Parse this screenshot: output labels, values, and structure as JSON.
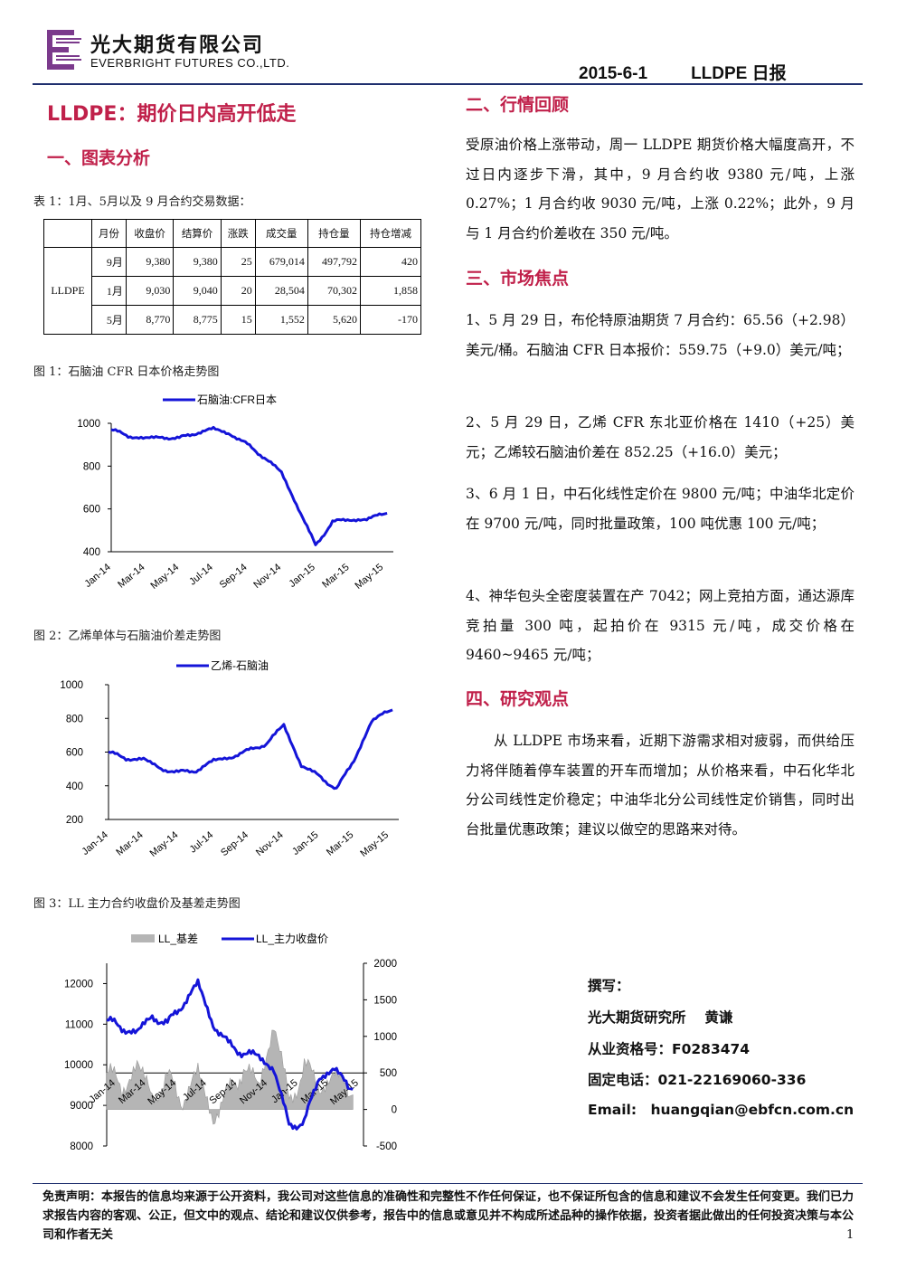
{
  "header": {
    "company_cn": "光大期货有限公司",
    "company_en": "EVERBRIGHT FUTURES CO.,LTD.",
    "date": "2015-6-1",
    "report": "LLDPE 日报"
  },
  "colors": {
    "accent": "#c0204a",
    "brand_navy": "#1f2f6e",
    "logo_purple": "#7b3a8c",
    "series_blue": "#1414d8",
    "basis_gray": "#b5b5b5"
  },
  "title": "LLDPE：期价日内高开低走",
  "sections": {
    "s1": "一、图表分析",
    "s2": "二、行情回顾",
    "s3": "三、市场焦点",
    "s4": "四、研究观点"
  },
  "table1": {
    "caption": "表 1：1月、5月以及 9 月合约交易数据：",
    "headers": [
      "",
      "月份",
      "收盘价",
      "结算价",
      "涨跌",
      "成交量",
      "持仓量",
      "持仓增减"
    ],
    "product": "LLDPE",
    "rows": [
      [
        "9月",
        "9,380",
        "9,380",
        "25",
        "679,014",
        "497,792",
        "420"
      ],
      [
        "1月",
        "9,030",
        "9,040",
        "20",
        "28,504",
        "70,302",
        "1,858"
      ],
      [
        "5月",
        "8,770",
        "8,775",
        "15",
        "1,552",
        "5,620",
        "-170"
      ]
    ]
  },
  "figures": {
    "fig1_caption": "图 1：石脑油 CFR 日本价格走势图",
    "fig2_caption": "图 2：乙烯单体与石脑油价差走势图",
    "fig3_caption": "图 3：LL 主力合约收盘价及基差走势图"
  },
  "chart_data": [
    {
      "type": "line",
      "series": [
        {
          "name": "石脑油:CFR日本",
          "x": [
            "2014-01",
            "2014-02",
            "2014-03",
            "2014-04",
            "2014-05",
            "2014-06",
            "2014-07",
            "2014-08",
            "2014-09",
            "2014-10",
            "2014-11",
            "2014-12",
            "2015-01",
            "2015-02",
            "2015-03",
            "2015-04",
            "2015-05"
          ],
          "values": [
            970,
            940,
            930,
            935,
            930,
            955,
            975,
            950,
            900,
            840,
            770,
            600,
            430,
            540,
            550,
            550,
            580
          ]
        }
      ],
      "x_ticks": [
        "Jan-14",
        "Mar-14",
        "May-14",
        "Jul-14",
        "Sep-14",
        "Nov-14",
        "Jan-15",
        "Mar-15",
        "May-15"
      ],
      "yticks": [
        400,
        600,
        800,
        1000
      ],
      "ylim": [
        400,
        1000
      ],
      "legend": "top"
    },
    {
      "type": "line",
      "series": [
        {
          "name": "乙烯-石脑油",
          "x": [
            "2014-01",
            "2014-02",
            "2014-03",
            "2014-04",
            "2014-05",
            "2014-06",
            "2014-07",
            "2014-08",
            "2014-09",
            "2014-10",
            "2014-11",
            "2014-12",
            "2015-01",
            "2015-02",
            "2015-03",
            "2015-04",
            "2015-05"
          ],
          "values": [
            600,
            560,
            560,
            500,
            480,
            490,
            550,
            570,
            610,
            650,
            760,
            520,
            460,
            380,
            550,
            780,
            850
          ]
        }
      ],
      "x_ticks": [
        "Jan-14",
        "Mar-14",
        "May-14",
        "Jul-14",
        "Sep-14",
        "Nov-14",
        "Jan-15",
        "Mar-15",
        "May-15"
      ],
      "yticks": [
        200,
        400,
        600,
        800,
        1000
      ],
      "ylim": [
        200,
        1000
      ],
      "legend": "top"
    },
    {
      "type": "line",
      "series": [
        {
          "name": "LL_基差",
          "axis": "right",
          "x": [
            "2014-01",
            "2014-02",
            "2014-03",
            "2014-04",
            "2014-05",
            "2014-06",
            "2014-07",
            "2014-08",
            "2014-09",
            "2014-10",
            "2014-11",
            "2014-12",
            "2015-01",
            "2015-02",
            "2015-03",
            "2015-04",
            "2015-05"
          ],
          "values": [
            500,
            300,
            600,
            200,
            400,
            150,
            500,
            -100,
            200,
            600,
            300,
            1200,
            100,
            600,
            300,
            500,
            200
          ]
        },
        {
          "name": "LL_主力收盘价",
          "axis": "left",
          "x": [
            "2014-01",
            "2014-02",
            "2014-03",
            "2014-04",
            "2014-05",
            "2014-06",
            "2014-07",
            "2014-08",
            "2014-09",
            "2014-10",
            "2014-11",
            "2014-12",
            "2015-01",
            "2015-02",
            "2015-03",
            "2015-04",
            "2015-05"
          ],
          "values": [
            11100,
            10900,
            10800,
            11200,
            11000,
            11500,
            12000,
            11000,
            10500,
            10300,
            10200,
            9900,
            8500,
            8600,
            9700,
            9900,
            9400
          ]
        }
      ],
      "x_ticks": [
        "Jan-14",
        "Mar-14",
        "May-14",
        "Jul-14",
        "Sep-14",
        "Nov-14",
        "Jan-15",
        "Mar-15",
        "May-15"
      ],
      "yticks_left": [
        8000,
        9000,
        10000,
        11000,
        12000
      ],
      "ylim_left": [
        8000,
        12500
      ],
      "yticks_right": [
        -500,
        0,
        500,
        1000,
        1500,
        2000
      ],
      "ylim_right": [
        -500,
        2000
      ],
      "legend": "top"
    }
  ],
  "review": {
    "p1": "受原油价格上涨带动，周一 LLDPE 期货价格大幅度高开，不过日内逐步下滑，其中，9 月合约收 9380 元/吨，上涨 0.27%；1 月合约收 9030 元/吨，上涨 0.22%；此外，9 月与 1 月合约价差收在 350 元/吨。"
  },
  "focus": [
    "1、5 月 29 日，布伦特原油期货 7 月合约：65.56（+2.98）美元/桶。石脑油 CFR 日本报价：559.75（+9.0）美元/吨；",
    "2、5 月 29 日，乙烯 CFR 东北亚价格在 1410（+25）美元；乙烯较石脑油价差在 852.25（+16.0）美元；",
    "3、6 月 1 日，中石化线性定价在 9800 元/吨；中油华北定价在 9700 元/吨，同时批量政策，100 吨优惠 100 元/吨；",
    "4、神华包头全密度装置在产 7042；网上竞拍方面，通达源库竞拍量 300 吨，起拍价在 9315 元/吨，成交价格在 9460~9465 元/吨；"
  ],
  "view": {
    "p1": "从 LLDPE 市场来看，近期下游需求相对疲弱，而供给压力将伴随着停车装置的开车而增加；从价格来看，中石化华北分公司线性定价稳定；中油华北分公司线性定价销售，同时出台批量优惠政策；建议以做空的思路来对待。"
  },
  "author": {
    "label": "撰写：",
    "org": "光大期货研究所　 黄谦",
    "license": "从业资格号：F0283474",
    "phone": "固定电话：021-22169060-336",
    "email": "Email:　huangqian@ebfcn.com.cn"
  },
  "disclaimer": "免责声明：本报告的信息均来源于公开资料，我公司对这些信息的准确性和完整性不作任何保证，也不保证所包含的信息和建议不会发生任何变更。我们已力求报告内容的客观、公正，但文中的观点、结论和建议仅供参考，报告中的信息或意见并不构成所述品种的操作依据，投资者据此做出的任何投资决策与本公司和作者无关",
  "page_number": "1"
}
